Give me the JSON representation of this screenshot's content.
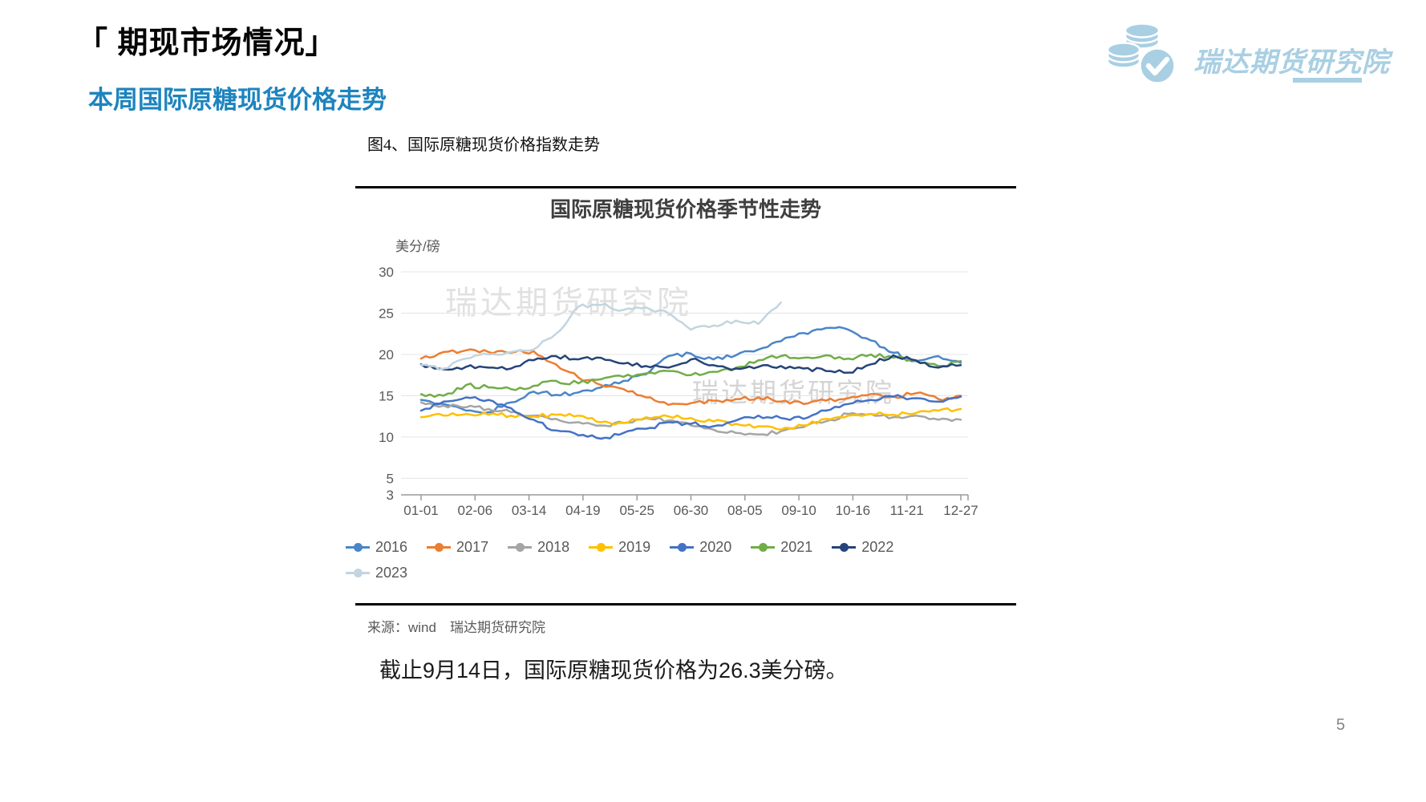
{
  "header": {
    "title": "「 期现市场情况」",
    "subtitle": "本周国际原糖现货价格走势",
    "logo_text": "瑞达期货研究院",
    "logo_color": "#A9CFE3",
    "subtitle_color": "#1D84BE"
  },
  "figure": {
    "caption": "图4、国际原糖现货价格指数走势",
    "source": "来源：wind　瑞达期货研究院",
    "watermark": "瑞达期货研究院"
  },
  "page": {
    "body_text": "截止9月14日，国际原糖现货价格为26.3美分磅。",
    "page_number": "5"
  },
  "chart_data": {
    "type": "line",
    "title": "国际原糖现货价格季节性走势",
    "unit_label": "美分/磅",
    "xlabel": "",
    "ylabel": "美分/磅",
    "ylim": [
      3,
      30
    ],
    "xlim": [
      1,
      361
    ],
    "grid": true,
    "legend_position": "bottom",
    "y_ticks": [
      30,
      25,
      20,
      15,
      10,
      5,
      3
    ],
    "x_tick_labels": [
      "01-01",
      "02-06",
      "03-14",
      "04-19",
      "05-25",
      "06-30",
      "08-05",
      "09-10",
      "10-16",
      "11-21",
      "12-27"
    ],
    "x_tick_days": [
      1,
      37,
      73,
      109,
      145,
      181,
      217,
      253,
      289,
      325,
      361
    ],
    "x_days": [
      1,
      16,
      31,
      46,
      61,
      76,
      91,
      106,
      121,
      136,
      151,
      166,
      181,
      196,
      211,
      226,
      241,
      256,
      271,
      286,
      301,
      316,
      331,
      346,
      361
    ],
    "series": [
      {
        "name": "2016",
        "color": "#4A86C8",
        "values": [
          14.5,
          14.0,
          13.2,
          13.0,
          14.2,
          15.5,
          15.1,
          15.4,
          16.0,
          16.8,
          17.6,
          19.8,
          20.1,
          19.4,
          19.9,
          20.6,
          21.6,
          22.6,
          23.2,
          23.0,
          21.7,
          20.2,
          19.2,
          19.8,
          19.0
        ]
      },
      {
        "name": "2017",
        "color": "#ED7D31",
        "values": [
          19.5,
          20.3,
          20.5,
          20.3,
          20.2,
          20.4,
          18.8,
          17.2,
          16.3,
          15.8,
          14.8,
          13.9,
          14.1,
          14.4,
          14.6,
          14.8,
          14.3,
          14.0,
          14.4,
          14.7,
          15.2,
          14.9,
          15.3,
          14.6,
          15.0
        ]
      },
      {
        "name": "2018",
        "color": "#A5A5A5",
        "values": [
          14.2,
          13.8,
          13.6,
          13.4,
          13.0,
          12.6,
          12.2,
          11.8,
          11.4,
          11.7,
          12.3,
          12.0,
          11.4,
          10.9,
          10.5,
          10.3,
          10.7,
          11.2,
          11.9,
          12.8,
          12.8,
          12.4,
          12.6,
          12.1,
          12.1
        ]
      },
      {
        "name": "2019",
        "color": "#FFC000",
        "values": [
          12.4,
          12.6,
          12.8,
          12.7,
          12.6,
          12.5,
          12.7,
          12.6,
          11.8,
          11.7,
          12.4,
          12.5,
          12.3,
          11.9,
          11.6,
          11.3,
          10.9,
          11.4,
          12.2,
          12.6,
          12.8,
          12.7,
          12.9,
          13.2,
          13.4
        ]
      },
      {
        "name": "2020",
        "color": "#4472C4",
        "values": [
          13.2,
          14.3,
          14.8,
          14.5,
          13.5,
          12.1,
          10.8,
          10.2,
          9.8,
          10.5,
          11.0,
          11.8,
          11.6,
          11.3,
          12.0,
          12.6,
          12.3,
          12.2,
          13.2,
          14.0,
          14.5,
          14.9,
          14.7,
          14.3,
          14.9
        ]
      },
      {
        "name": "2021",
        "color": "#70AD47",
        "values": [
          15.2,
          15.0,
          16.3,
          16.0,
          15.8,
          16.2,
          16.8,
          16.5,
          17.0,
          17.3,
          17.7,
          18.0,
          17.5,
          17.9,
          18.4,
          19.3,
          19.8,
          19.6,
          19.9,
          19.5,
          20.0,
          19.6,
          19.2,
          18.6,
          19.2
        ]
      },
      {
        "name": "2022",
        "color": "#264478",
        "values": [
          18.8,
          18.2,
          18.5,
          18.4,
          18.3,
          19.3,
          19.8,
          19.4,
          19.6,
          18.9,
          18.6,
          18.4,
          19.4,
          18.7,
          18.3,
          18.5,
          18.6,
          18.3,
          18.0,
          17.8,
          18.8,
          19.9,
          19.3,
          18.4,
          18.7
        ]
      },
      {
        "name": "2023",
        "color": "#C3D5DF",
        "values": [
          18.7,
          18.3,
          19.5,
          20.0,
          20.3,
          20.6,
          22.5,
          25.8,
          26.0,
          25.4,
          25.7,
          25.0,
          23.0,
          23.5,
          24.1,
          23.7,
          26.3
        ]
      }
    ]
  }
}
